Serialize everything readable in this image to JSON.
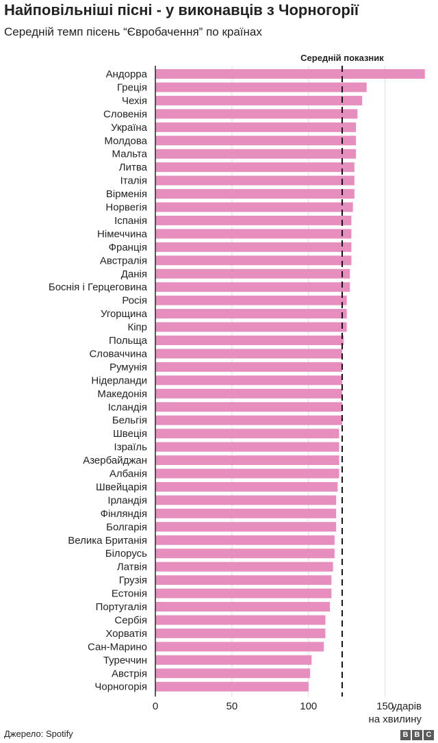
{
  "chart_data": {
    "type": "bar",
    "orientation": "horizontal",
    "title": "Найповільніші пісні - у виконавців з Чорногорії",
    "subtitle": "Середній темп пісень “Євробачення” по країнах",
    "xlabel": "ударів на хвилину",
    "xlabel_line1": "ударів",
    "xlabel_line2": "на хвилину",
    "xlim": [
      0,
      160
    ],
    "xticks": [
      0,
      50,
      100,
      150
    ],
    "xtick_labels": [
      "0",
      "50",
      "100",
      "150"
    ],
    "average_label": "Середній показник",
    "average_value": 122,
    "bar_color": "#e68fbf",
    "categories": [
      "Андорра",
      "Греція",
      "Чехія",
      "Словенія",
      "Україна",
      "Молдова",
      "Мальта",
      "Литва",
      "Італія",
      "Вірменія",
      "Норвегія",
      "Іспанія",
      "Німеччина",
      "Франція",
      "Австралія",
      "Данія",
      "Боснія і Герцеговина",
      "Росія",
      "Угорщина",
      "Кіпр",
      "Польща",
      "Словаччина",
      "Румунія",
      "Нідерланди",
      "Македонія",
      "Ісландія",
      "Бельгія",
      "Швеція",
      "Ізраїль",
      "Азербайджан",
      "Албанія",
      "Швейцарія",
      "Ірландія",
      "Фінляндія",
      "Болгарія",
      "Велика Британія",
      "Білорусь",
      "Латвія",
      "Грузія",
      "Естонія",
      "Португалія",
      "Сербія",
      "Хорватія",
      "Сан-Марино",
      "Туреччин",
      "Австрія",
      "Чорногорія"
    ],
    "values": [
      176,
      138,
      135,
      132,
      131,
      131,
      131,
      130,
      130,
      130,
      129,
      128,
      128,
      128,
      128,
      127,
      127,
      125,
      125,
      125,
      123,
      122,
      122,
      122,
      122,
      122,
      122,
      120,
      120,
      120,
      120,
      119,
      118,
      118,
      118,
      117,
      117,
      116,
      115,
      115,
      114,
      111,
      111,
      110,
      102,
      101,
      100
    ]
  },
  "footer": {
    "source": "Джерело: Spotify",
    "brand": [
      "B",
      "B",
      "C"
    ]
  }
}
